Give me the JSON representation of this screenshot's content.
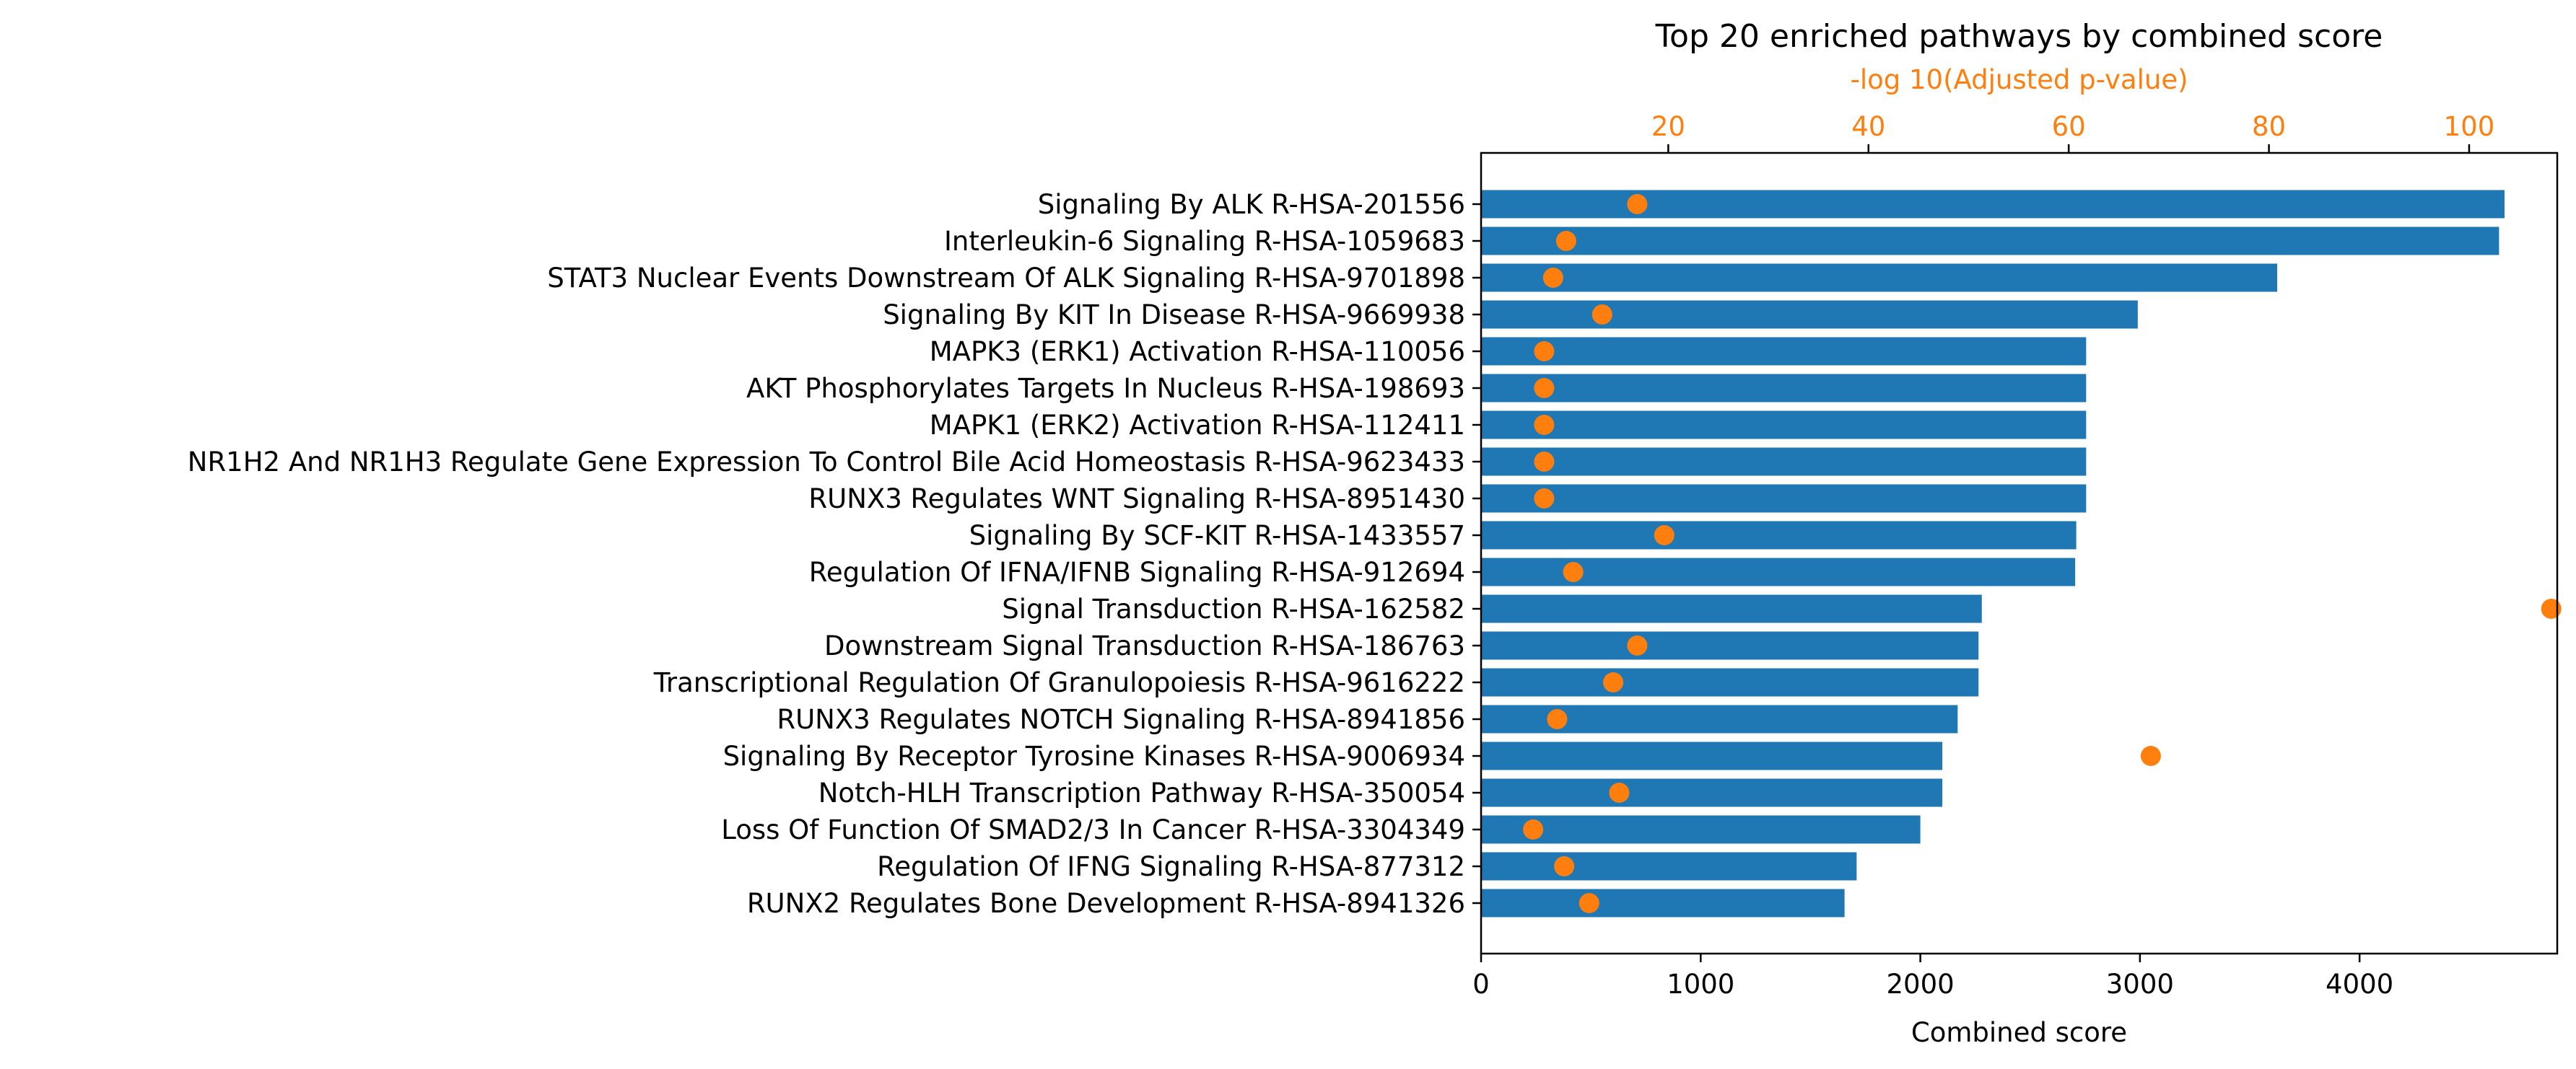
{
  "chart_data": {
    "type": "bar",
    "orientation": "horizontal",
    "title": "Top 20 enriched pathways by combined score",
    "xlabel": "Combined score",
    "xlim": [
      0,
      4900
    ],
    "xticks": [
      0,
      1000,
      2000,
      3000,
      4000
    ],
    "secondary_axis": {
      "label": "-log 10(Adjusted p-value)",
      "position": "top",
      "color": "#ff7f0e",
      "xlim": [
        1.3,
        108.8
      ],
      "xticks": [
        20,
        40,
        60,
        80,
        100
      ]
    },
    "grid": false,
    "bar_color": "#1f77b4",
    "point_color": "#ff7f0e",
    "categories": [
      "Signaling By ALK R-HSA-201556",
      "Interleukin-6 Signaling R-HSA-1059683",
      "STAT3 Nuclear Events Downstream Of ALK Signaling R-HSA-9701898",
      "Signaling By KIT In Disease R-HSA-9669938",
      "MAPK3 (ERK1) Activation R-HSA-110056",
      "AKT Phosphorylates Targets In Nucleus R-HSA-198693",
      "MAPK1 (ERK2) Activation R-HSA-112411",
      "NR1H2 And NR1H3 Regulate Gene Expression To Control Bile Acid Homeostasis R-HSA-9623433",
      "RUNX3 Regulates WNT Signaling R-HSA-8951430",
      "Signaling By SCF-KIT R-HSA-1433557",
      "Regulation Of IFNA/IFNB Signaling R-HSA-912694",
      "Signal Transduction R-HSA-162582",
      "Downstream Signal Transduction R-HSA-186763",
      "Transcriptional Regulation Of Granulopoiesis R-HSA-9616222",
      "RUNX3 Regulates NOTCH Signaling R-HSA-8941856",
      "Signaling By Receptor Tyrosine Kinases R-HSA-9006934",
      "Notch-HLH Transcription Pathway R-HSA-350054",
      "Loss Of Function Of SMAD2/3 In Cancer R-HSA-3304349",
      "Regulation Of IFNG Signaling R-HSA-877312",
      "RUNX2 Regulates Bone Development R-HSA-8941326"
    ],
    "series": [
      {
        "name": "Combined score",
        "type": "bar",
        "values": [
          4660,
          4635,
          3625,
          2990,
          2755,
          2755,
          2755,
          2755,
          2755,
          2710,
          2705,
          2280,
          2265,
          2265,
          2170,
          2100,
          2100,
          2000,
          1710,
          1655
        ]
      },
      {
        "name": "-log 10(Adjusted p-value)",
        "type": "scatter",
        "values": [
          16.9,
          9.8,
          8.5,
          13.4,
          7.6,
          7.6,
          7.6,
          7.6,
          7.6,
          19.6,
          10.5,
          108.2,
          16.9,
          14.5,
          8.9,
          68.2,
          15.1,
          6.5,
          9.6,
          12.1
        ]
      }
    ]
  }
}
